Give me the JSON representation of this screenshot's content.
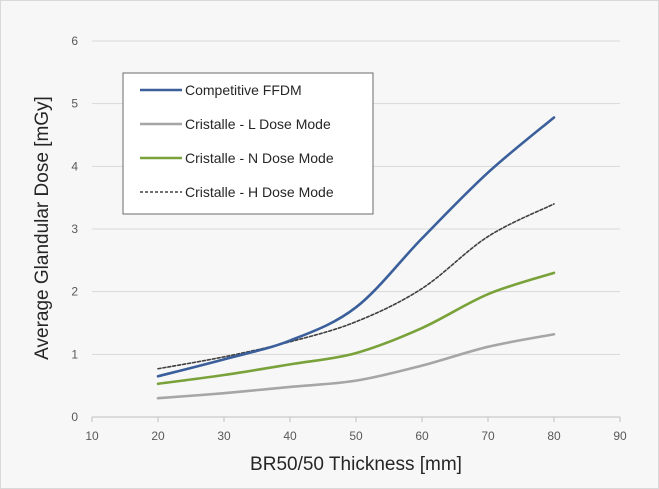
{
  "chart_data": {
    "type": "line",
    "title": "",
    "xlabel": "BR50/50 Thickness [mm]",
    "ylabel": "Average Glandular Dose [mGy]",
    "xlim": [
      10,
      90
    ],
    "ylim": [
      0,
      6
    ],
    "xticks": [
      "10",
      "20",
      "30",
      "40",
      "50",
      "60",
      "70",
      "80",
      "90"
    ],
    "yticks": [
      "0",
      "1",
      "2",
      "3",
      "4",
      "5",
      "6"
    ],
    "grid": "horizontal",
    "legend_position": "top-left",
    "x": [
      20,
      30,
      40,
      50,
      60,
      70,
      80
    ],
    "series": [
      {
        "name": "Competitive FFDM",
        "color": "#3a5f9b",
        "dash": "solid",
        "values": [
          0.65,
          0.92,
          1.22,
          1.75,
          2.85,
          3.9,
          4.78
        ]
      },
      {
        "name": "Cristalle - L Dose Mode",
        "color": "#a6a6a6",
        "dash": "solid",
        "values": [
          0.3,
          0.38,
          0.48,
          0.58,
          0.82,
          1.12,
          1.32
        ]
      },
      {
        "name": "Cristalle - N Dose Mode",
        "color": "#7aa23a",
        "dash": "solid",
        "values": [
          0.53,
          0.67,
          0.84,
          1.02,
          1.42,
          1.96,
          2.3
        ]
      },
      {
        "name": "Cristalle - H Dose Mode",
        "color": "#404040",
        "dash": "dashed",
        "values": [
          0.77,
          0.96,
          1.2,
          1.52,
          2.05,
          2.88,
          3.4
        ]
      }
    ]
  }
}
